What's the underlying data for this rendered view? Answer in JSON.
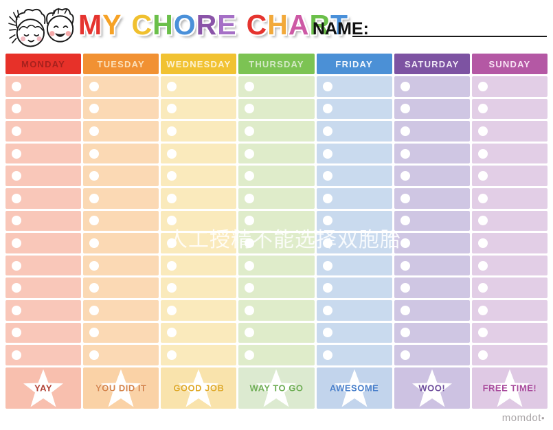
{
  "header": {
    "title_letters": [
      {
        "char": "M",
        "color": "#e5342f"
      },
      {
        "char": "Y",
        "color": "#f6a226"
      },
      {
        "char": " "
      },
      {
        "char": "C",
        "color": "#f0c02f"
      },
      {
        "char": "H",
        "color": "#6bbf4a"
      },
      {
        "char": "O",
        "color": "#4a90d9"
      },
      {
        "char": "R",
        "color": "#8a54a8"
      },
      {
        "char": "E",
        "color": "#a56fc6"
      },
      {
        "char": " "
      },
      {
        "char": "C",
        "color": "#e5342f"
      },
      {
        "char": "H",
        "color": "#f2a93a"
      },
      {
        "char": "A",
        "color": "#cd59a5"
      },
      {
        "char": "R",
        "color": "#6bbf4a"
      },
      {
        "char": "T",
        "color": "#4a90d9"
      }
    ],
    "name_label": "NAME:"
  },
  "chart": {
    "rows_per_column": 13,
    "columns": [
      {
        "day": "MONDAY",
        "header_bg": "#e73129",
        "header_fg": "#a6211d",
        "row_bg": "#f9c7b9",
        "footer_bg": "#f8bfae",
        "footer_label": "YAY",
        "footer_fg": "#b04034"
      },
      {
        "day": "TUESDAY",
        "header_bg": "#f19133",
        "header_fg": "#fbe0ba",
        "row_bg": "#fbd9b4",
        "footer_bg": "#fad2a6",
        "footer_label": "YOU DID IT",
        "footer_fg": "#d5854c"
      },
      {
        "day": "WEDNESDAY",
        "header_bg": "#f1c232",
        "header_fg": "#fdf2d2",
        "row_bg": "#faeabc",
        "footer_bg": "#f9e3ac",
        "footer_label": "GOOD JOB",
        "footer_fg": "#e0ab2d"
      },
      {
        "day": "THURSDAY",
        "header_bg": "#7cc353",
        "header_fg": "#d4e9c6",
        "row_bg": "#dfecca",
        "footer_bg": "#dcead0",
        "footer_label": "WAY TO GO",
        "footer_fg": "#6fae55"
      },
      {
        "day": "FRIDAY",
        "header_bg": "#4b90d6",
        "header_fg": "#f4f8fd",
        "row_bg": "#c9daee",
        "footer_bg": "#c2d4ec",
        "footer_label": "AWESOME",
        "footer_fg": "#4a80cb"
      },
      {
        "day": "SATURDAY",
        "header_bg": "#7d53a2",
        "header_fg": "#efe7f5",
        "row_bg": "#cfc6e3",
        "footer_bg": "#cdc2e2",
        "footer_label": "WOO!",
        "footer_fg": "#6f4f9d"
      },
      {
        "day": "SUNDAY",
        "header_bg": "#b458a4",
        "header_fg": "#f8e4f4",
        "row_bg": "#e2cee6",
        "footer_bg": "#dfc9e4",
        "footer_label": "FREE TIME!",
        "footer_fg": "#a94b9d"
      }
    ]
  },
  "watermark_text": "人工授精不能选择双胞胎",
  "brand_text": "momdot"
}
